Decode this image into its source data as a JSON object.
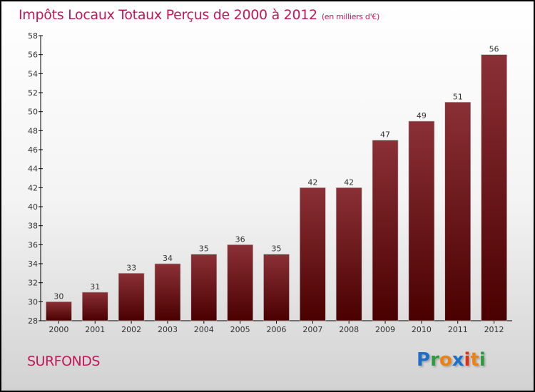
{
  "title": "Impôts Locaux Totaux Perçus de 2000 à 2012",
  "subtitle": "(en milliers d'€)",
  "commune": "SURFONDS",
  "logo": {
    "text": "Proxiti",
    "letters": [
      "P",
      "r",
      "o",
      "x",
      "i",
      "t",
      "i"
    ],
    "colors": [
      "#1e6fc8",
      "#2e9a3e",
      "#f08010",
      "#1e6fc8",
      "#e03010",
      "#f08010",
      "#2e9a3e"
    ]
  },
  "colors": {
    "title": "#c2185b",
    "bar_top": "#8a3036",
    "bar_bottom": "#4a0000"
  },
  "chart_data": {
    "type": "bar",
    "title": "Impôts Locaux Totaux Perçus de 2000 à 2012",
    "xlabel": "",
    "ylabel": "",
    "categories": [
      "2000",
      "2001",
      "2002",
      "2003",
      "2004",
      "2005",
      "2006",
      "2007",
      "2008",
      "2009",
      "2010",
      "2011",
      "2012"
    ],
    "values": [
      30,
      31,
      33,
      34,
      35,
      36,
      35,
      42,
      42,
      47,
      49,
      51,
      56
    ],
    "ylim": [
      28,
      58
    ],
    "yticks": [
      28,
      30,
      32,
      34,
      36,
      38,
      40,
      42,
      44,
      46,
      48,
      50,
      52,
      54,
      56,
      58
    ],
    "grid": false,
    "data_labels": true
  }
}
